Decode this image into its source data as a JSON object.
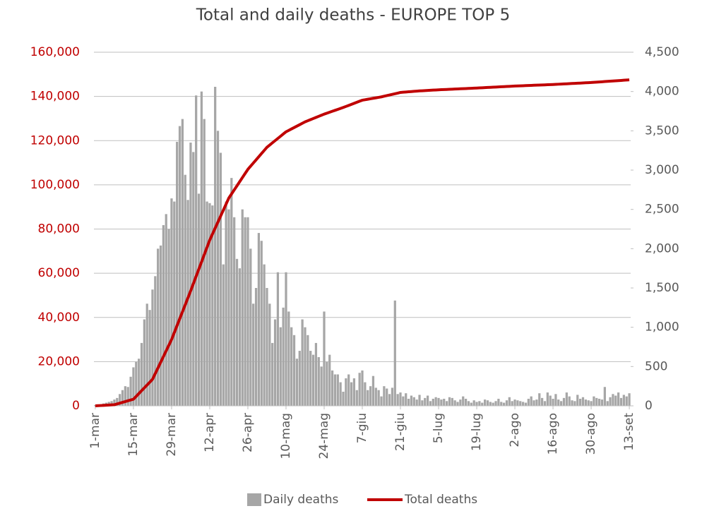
{
  "chart_data": {
    "type": "bar_line",
    "title": "Total and daily deaths - EUROPE TOP 5",
    "categories": [
      "1-mar",
      null,
      null,
      null,
      null,
      null,
      null,
      null,
      null,
      null,
      null,
      null,
      null,
      null,
      "15-mar",
      null,
      null,
      null,
      null,
      null,
      null,
      null,
      null,
      null,
      null,
      null,
      null,
      null,
      "29-mar",
      null,
      null,
      null,
      null,
      null,
      null,
      null,
      null,
      null,
      null,
      null,
      null,
      null,
      "12-apr",
      null,
      null,
      null,
      null,
      null,
      null,
      null,
      null,
      null,
      null,
      null,
      null,
      null,
      "26-apr",
      null,
      null,
      null,
      null,
      null,
      null,
      null,
      null,
      null,
      null,
      null,
      null,
      null,
      "10-mag",
      null,
      null,
      null,
      null,
      null,
      null,
      null,
      null,
      null,
      null,
      null,
      null,
      null,
      "24-mag",
      null,
      null,
      null,
      null,
      null,
      null,
      null,
      null,
      null,
      null,
      null,
      null,
      null,
      "7-giu",
      null,
      null,
      null,
      null,
      null,
      null,
      null,
      null,
      null,
      null,
      null,
      null,
      null,
      "21-giu",
      null,
      null,
      null,
      null,
      null,
      null,
      null,
      null,
      null,
      null,
      null,
      null,
      null,
      "5-lug",
      null,
      null,
      null,
      null,
      null,
      null,
      null,
      null,
      null,
      null,
      null,
      null,
      null,
      "19-lug",
      null,
      null,
      null,
      null,
      null,
      null,
      null,
      null,
      null,
      null,
      null,
      null,
      null,
      "2-ago",
      null,
      null,
      null,
      null,
      null,
      null,
      null,
      null,
      null,
      null,
      null,
      null,
      null,
      "16-ago",
      null,
      null,
      null,
      null,
      null,
      null,
      null,
      null,
      null,
      null,
      null,
      null,
      null,
      "30-ago",
      null,
      null,
      null,
      null,
      null,
      null,
      null,
      null,
      null,
      null,
      null,
      null,
      null,
      "13-set"
    ],
    "series": [
      {
        "name": "Daily deaths",
        "type": "bar",
        "axis": "y2",
        "color": "#a6a6a6",
        "values": [
          10,
          15,
          20,
          30,
          40,
          50,
          60,
          80,
          100,
          150,
          200,
          250,
          240,
          370,
          490,
          560,
          600,
          800,
          1100,
          1300,
          1220,
          1480,
          1650,
          2000,
          2040,
          2300,
          2440,
          2250,
          2640,
          2600,
          3360,
          3560,
          3650,
          2940,
          2620,
          3350,
          3230,
          3950,
          2700,
          4000,
          3650,
          2600,
          2580,
          2550,
          4060,
          3500,
          3220,
          1800,
          2600,
          2500,
          2900,
          2400,
          1870,
          1750,
          2500,
          2400,
          2400,
          2000,
          1300,
          1500,
          2200,
          2100,
          1800,
          1500,
          1300,
          800,
          1100,
          1700,
          1000,
          1250,
          1700,
          1200,
          1000,
          900,
          600,
          700,
          1100,
          1000,
          900,
          700,
          650,
          800,
          620,
          500,
          1200,
          560,
          650,
          450,
          400,
          400,
          300,
          180,
          350,
          400,
          300,
          350,
          200,
          420,
          450,
          300,
          200,
          250,
          380,
          230,
          200,
          120,
          250,
          220,
          150,
          230,
          1340,
          150,
          170,
          120,
          160,
          90,
          130,
          110,
          80,
          140,
          70,
          100,
          130,
          60,
          90,
          110,
          100,
          80,
          90,
          60,
          110,
          100,
          70,
          50,
          80,
          120,
          90,
          60,
          40,
          70,
          50,
          60,
          40,
          80,
          70,
          50,
          40,
          60,
          90,
          50,
          40,
          70,
          110,
          60,
          80,
          70,
          60,
          50,
          40,
          90,
          120,
          70,
          80,
          160,
          100,
          60,
          170,
          130,
          90,
          150,
          80,
          60,
          100,
          170,
          120,
          70,
          60,
          140,
          90,
          110,
          80,
          70,
          60,
          120,
          100,
          90,
          80,
          240,
          60,
          110,
          150,
          130,
          170,
          100,
          140,
          120,
          160
        ]
      },
      {
        "name": "Total deaths",
        "type": "line",
        "axis": "y",
        "color": "#c00000",
        "values": [
          0,
          70,
          140,
          210,
          290,
          360,
          430,
          500,
          860,
          1210,
          1570,
          1930,
          2290,
          2640,
          3000,
          4290,
          5570,
          6860,
          8140,
          9430,
          10710,
          12000,
          14570,
          17140,
          19710,
          22290,
          24860,
          27430,
          30000,
          33140,
          36290,
          39430,
          42570,
          45710,
          48860,
          52000,
          55290,
          58570,
          61860,
          65140,
          68430,
          71710,
          75000,
          77710,
          80430,
          83140,
          85860,
          88570,
          91290,
          94000,
          95860,
          97710,
          99570,
          101430,
          103290,
          105140,
          107000,
          108430,
          109860,
          111290,
          112710,
          114140,
          115570,
          117000,
          118000,
          119000,
          120000,
          121000,
          122000,
          123000,
          124000,
          124640,
          125290,
          125930,
          126570,
          127210,
          127860,
          128500,
          129000,
          129500,
          130000,
          130500,
          131000,
          131500,
          132000,
          132430,
          132860,
          133290,
          133710,
          134140,
          134570,
          135000,
          135470,
          135940,
          136410,
          136890,
          137360,
          137830,
          138300,
          138510,
          138730,
          138940,
          139160,
          139370,
          139590,
          139800,
          140090,
          140370,
          140660,
          140940,
          141230,
          141510,
          141800,
          141900,
          142000,
          142100,
          142200,
          142300,
          142400,
          142500,
          142570,
          142640,
          142710,
          142790,
          142860,
          142930,
          143000,
          143060,
          143110,
          143170,
          143230,
          143290,
          143340,
          143400,
          143460,
          143510,
          143570,
          143630,
          143690,
          143740,
          143800,
          143860,
          143930,
          143990,
          144060,
          144120,
          144190,
          144250,
          144310,
          144380,
          144440,
          144510,
          144570,
          144640,
          144700,
          144750,
          144800,
          144850,
          144900,
          144950,
          145000,
          145050,
          145100,
          145150,
          145200,
          145250,
          145300,
          145350,
          145400,
          145460,
          145530,
          145590,
          145660,
          145720,
          145790,
          145850,
          145910,
          145980,
          146040,
          146110,
          146170,
          146240,
          146300,
          146390,
          146470,
          146560,
          146640,
          146730,
          146810,
          146900,
          146990,
          147070,
          147160,
          147240,
          147330,
          147410,
          147500
        ]
      }
    ],
    "ylim": [
      0,
      160000
    ],
    "yticks": [
      0,
      {
        "value": 20000,
        "label": "20,000"
      },
      {
        "value": 40000,
        "label": "40,000"
      },
      {
        "value": 60000,
        "label": "60,000"
      },
      {
        "value": 80000,
        "label": "80,000"
      },
      {
        "value": 100000,
        "label": "100,000"
      },
      {
        "value": 120000,
        "label": "120,000"
      },
      {
        "value": 140000,
        "label": "140,000"
      },
      {
        "value": 160000,
        "label": "160,000"
      }
    ],
    "y2lim": [
      0,
      4500
    ],
    "y2ticks": [
      0,
      500,
      {
        "value": 1000,
        "label": "1,000"
      },
      {
        "value": 1500,
        "label": "1,500"
      },
      {
        "value": 2000,
        "label": "2,000"
      },
      {
        "value": 2500,
        "label": "2,500"
      },
      {
        "value": 3000,
        "label": "3,000"
      },
      {
        "value": 3500,
        "label": "3,500"
      },
      {
        "value": 4000,
        "label": "4,000"
      },
      {
        "value": 4500,
        "label": "4,500"
      }
    ],
    "ytick_color": "#c00000",
    "y2tick_color": "#595959",
    "grid": true,
    "legend": "bottom"
  }
}
